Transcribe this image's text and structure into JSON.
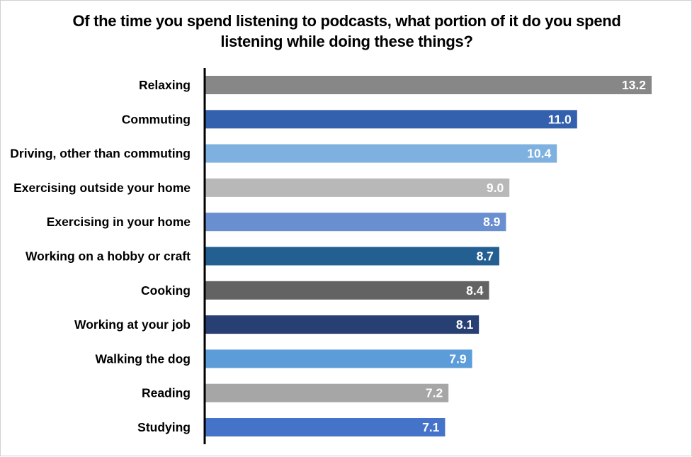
{
  "chart_data": {
    "type": "bar",
    "orientation": "horizontal",
    "title": [
      "Of the time you spend listening to podcasts, what portion of it do you spend",
      "listening while doing these things?"
    ],
    "xlabel": "",
    "ylabel": "",
    "xlim": [
      0,
      13.2
    ],
    "grid": false,
    "legend": "none",
    "categories": [
      "Relaxing",
      "Commuting",
      "Driving, other than commuting",
      "Exercising outside your home",
      "Exercising in your home",
      "Working on a hobby or craft",
      "Cooking",
      "Working at your job",
      "Walking the dog",
      "Reading",
      "Studying"
    ],
    "values": [
      13.2,
      11.0,
      10.4,
      9.0,
      8.9,
      8.7,
      8.4,
      8.1,
      7.9,
      7.2,
      7.1
    ],
    "value_labels": [
      "13.2",
      "11.0",
      "10.4",
      "9.0",
      "8.9",
      "8.7",
      "8.4",
      "8.1",
      "7.9",
      "7.2",
      "7.1"
    ],
    "colors": [
      "#878787",
      "#3461AE",
      "#7EB1E0",
      "#B8B8B8",
      "#6A8FD0",
      "#245F92",
      "#636363",
      "#273F73",
      "#5C9DD9",
      "#A6A6A6",
      "#4473C9"
    ]
  }
}
